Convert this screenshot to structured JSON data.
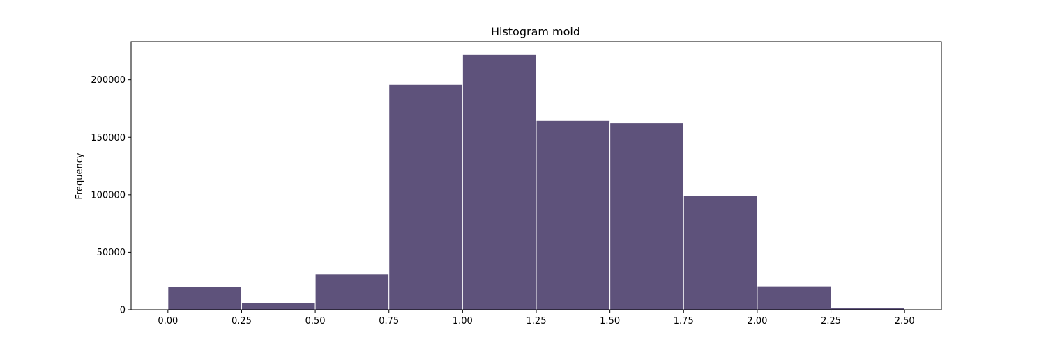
{
  "chart_data": {
    "type": "bar",
    "title": "Histogram moid",
    "xlabel": "",
    "ylabel": "Frequency",
    "bar_color": "#5e527b",
    "edge_color": "#ffffff",
    "bins": [
      {
        "start": 0.0,
        "end": 0.25,
        "count": 20000
      },
      {
        "start": 0.25,
        "end": 0.5,
        "count": 6000
      },
      {
        "start": 0.5,
        "end": 0.75,
        "count": 31000
      },
      {
        "start": 0.75,
        "end": 1.0,
        "count": 196000
      },
      {
        "start": 1.0,
        "end": 1.25,
        "count": 222000
      },
      {
        "start": 1.25,
        "end": 1.5,
        "count": 164500
      },
      {
        "start": 1.5,
        "end": 1.75,
        "count": 162500
      },
      {
        "start": 1.75,
        "end": 2.0,
        "count": 99500
      },
      {
        "start": 2.0,
        "end": 2.25,
        "count": 20500
      },
      {
        "start": 2.25,
        "end": 2.5,
        "count": 1500
      }
    ],
    "xlim": [
      -0.125,
      2.625
    ],
    "ylim": [
      0,
      233100
    ],
    "xticks": [
      0.0,
      0.25,
      0.5,
      0.75,
      1.0,
      1.25,
      1.5,
      1.75,
      2.0,
      2.25,
      2.5
    ],
    "xtick_labels": [
      "0.00",
      "0.25",
      "0.50",
      "0.75",
      "1.00",
      "1.25",
      "1.50",
      "1.75",
      "2.00",
      "2.25",
      "2.50"
    ],
    "yticks": [
      0,
      50000,
      100000,
      150000,
      200000
    ],
    "ytick_labels": [
      "0",
      "50000",
      "100000",
      "150000",
      "200000"
    ],
    "grid": false,
    "legend": "none"
  }
}
